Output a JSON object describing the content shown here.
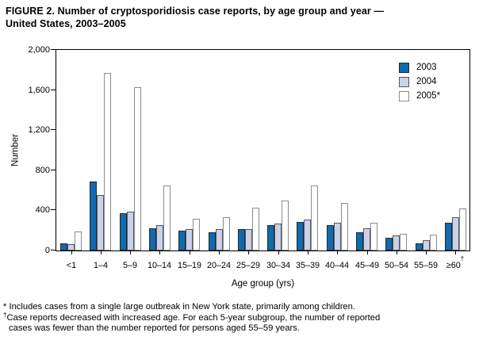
{
  "figure": {
    "title_line1": "FIGURE 2. Number of cryptosporidiosis case reports, by age group and year —",
    "title_line2": "United States, 2003–2005"
  },
  "chart_data": {
    "type": "bar",
    "title": "FIGURE 2. Number of cryptosporidiosis case reports, by age group and year — United States, 2003–2005",
    "xlabel": "Age group (yrs)",
    "ylabel": "Number",
    "ylim": [
      0,
      2000
    ],
    "grid": false,
    "legend_position": "top-right-inside",
    "yticks": [
      {
        "value": 0,
        "label": "0"
      },
      {
        "value": 400,
        "label": "400"
      },
      {
        "value": 800,
        "label": "800"
      },
      {
        "value": 1200,
        "label": "1,200"
      },
      {
        "value": 1600,
        "label": "1,600"
      },
      {
        "value": 2000,
        "label": "2,000"
      }
    ],
    "categories": [
      "<1",
      "1–4",
      "5–9",
      "10–14",
      "15–19",
      "20–24",
      "25–29",
      "30–34",
      "35–39",
      "40–44",
      "45–49",
      "50–54",
      "55–59",
      "≥60"
    ],
    "dagger_category_index": 13,
    "dagger_marker": "†",
    "series": [
      {
        "name": "2003",
        "fill": "#0f6bad",
        "border": "#26282a",
        "values": [
          75,
          690,
          375,
          220,
          195,
          185,
          210,
          255,
          285,
          255,
          185,
          130,
          75,
          280
        ]
      },
      {
        "name": "2004",
        "fill": "#c9d2e8",
        "border": "#55565a",
        "values": [
          60,
          550,
          390,
          255,
          210,
          215,
          210,
          265,
          305,
          275,
          220,
          150,
          105,
          335
        ]
      },
      {
        "name": "2005*",
        "fill": "#ffffff",
        "border": "#8a8b8d",
        "values": [
          190,
          1770,
          1625,
          650,
          320,
          330,
          430,
          495,
          650,
          475,
          280,
          165,
          155,
          420
        ]
      }
    ]
  },
  "footnotes": {
    "star_line": "* Includes cases from a single large outbreak in New York state, primarily among children.",
    "dagger_sym": "†",
    "dagger_line1": "Case reports decreased with increased age. For each 5-year subgroup, the number of reported",
    "dagger_line2": "cases was fewer than the number reported for persons aged 55–59 years."
  }
}
